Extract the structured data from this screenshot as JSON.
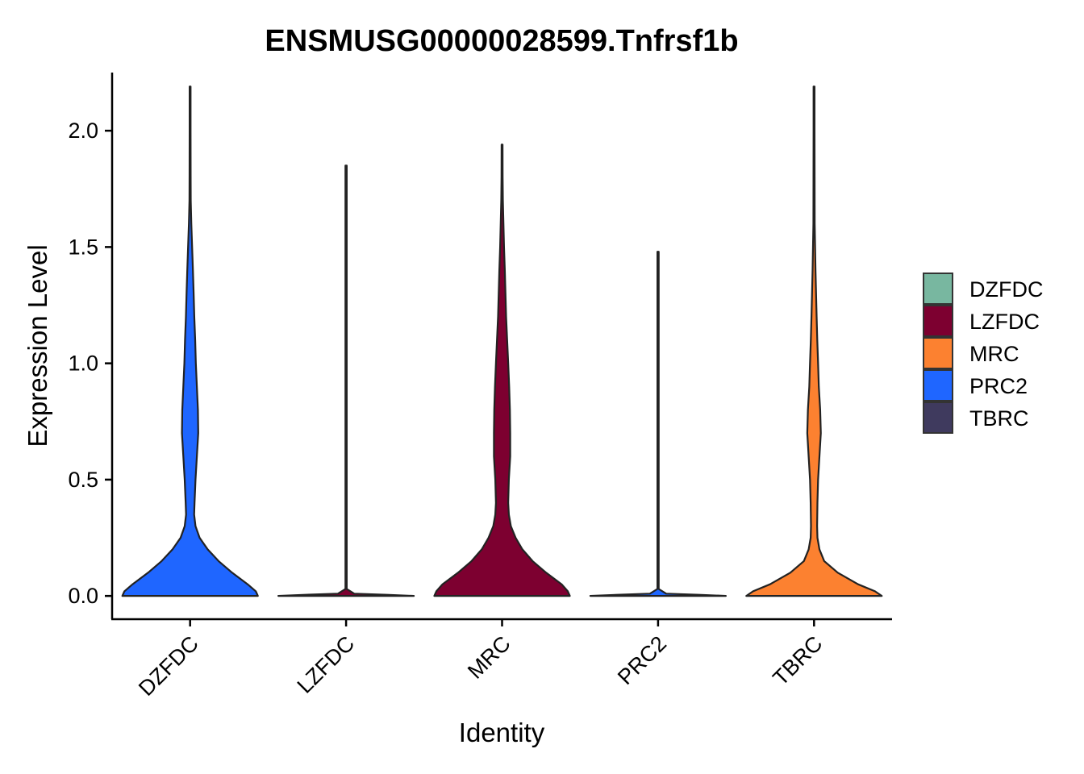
{
  "chart_data": {
    "type": "violin",
    "title": "ENSMUSG00000028599.Tnfrsf1b",
    "xlabel": "Identity",
    "ylabel": "Expression Level",
    "ylim": [
      -0.1,
      2.25
    ],
    "yticks": [
      0.0,
      0.5,
      1.0,
      1.5,
      2.0
    ],
    "ytick_labels": [
      "0.0",
      "0.5",
      "1.0",
      "1.5",
      "2.0"
    ],
    "categories": [
      "DZFDC",
      "LZFDC",
      "MRC",
      "PRC2",
      "TBRC"
    ],
    "grid": false,
    "legend_position": "right",
    "legend": [
      {
        "label": "DZFDC",
        "color": "#78B7A0"
      },
      {
        "label": "LZFDC",
        "color": "#7D0030"
      },
      {
        "label": "MRC",
        "color": "#FC8130"
      },
      {
        "label": "PRC2",
        "color": "#1F66FF"
      },
      {
        "label": "TBRC",
        "color": "#3F3A5E"
      }
    ],
    "series": [
      {
        "category": "DZFDC",
        "fill": "#1F66FF",
        "max": 2.19,
        "density": [
          [
            0.0,
            1.0
          ],
          [
            0.02,
            0.97
          ],
          [
            0.05,
            0.85
          ],
          [
            0.1,
            0.62
          ],
          [
            0.15,
            0.42
          ],
          [
            0.2,
            0.26
          ],
          [
            0.25,
            0.14
          ],
          [
            0.3,
            0.08
          ],
          [
            0.35,
            0.06
          ],
          [
            0.4,
            0.065
          ],
          [
            0.5,
            0.08
          ],
          [
            0.6,
            0.1
          ],
          [
            0.7,
            0.12
          ],
          [
            0.8,
            0.115
          ],
          [
            0.9,
            0.1
          ],
          [
            1.0,
            0.085
          ],
          [
            1.1,
            0.075
          ],
          [
            1.2,
            0.062
          ],
          [
            1.3,
            0.052
          ],
          [
            1.4,
            0.042
          ],
          [
            1.5,
            0.03
          ],
          [
            1.6,
            0.018
          ],
          [
            1.7,
            0.01
          ],
          [
            1.8,
            0.008
          ],
          [
            2.0,
            0.006
          ],
          [
            2.19,
            0.003
          ]
        ]
      },
      {
        "category": "LZFDC",
        "fill": "#7D0030",
        "max": 1.85,
        "density": [
          [
            0.0,
            1.0
          ],
          [
            0.005,
            0.6
          ],
          [
            0.01,
            0.12
          ],
          [
            0.03,
            0.01
          ],
          [
            0.1,
            0.01
          ],
          [
            1.85,
            0.01
          ]
        ]
      },
      {
        "category": "MRC",
        "fill": "#7D0030",
        "max": 1.94,
        "density": [
          [
            0.0,
            1.0
          ],
          [
            0.02,
            0.97
          ],
          [
            0.05,
            0.88
          ],
          [
            0.1,
            0.65
          ],
          [
            0.15,
            0.45
          ],
          [
            0.2,
            0.3
          ],
          [
            0.25,
            0.2
          ],
          [
            0.3,
            0.13
          ],
          [
            0.35,
            0.1
          ],
          [
            0.4,
            0.09
          ],
          [
            0.5,
            0.1
          ],
          [
            0.6,
            0.12
          ],
          [
            0.7,
            0.12
          ],
          [
            0.8,
            0.115
          ],
          [
            0.9,
            0.105
          ],
          [
            1.0,
            0.09
          ],
          [
            1.1,
            0.075
          ],
          [
            1.2,
            0.06
          ],
          [
            1.3,
            0.05
          ],
          [
            1.4,
            0.04
          ],
          [
            1.5,
            0.028
          ],
          [
            1.6,
            0.02
          ],
          [
            1.7,
            0.012
          ],
          [
            1.8,
            0.008
          ],
          [
            1.94,
            0.004
          ]
        ]
      },
      {
        "category": "PRC2",
        "fill": "#1F66FF",
        "max": 1.48,
        "density": [
          [
            0.0,
            1.0
          ],
          [
            0.005,
            0.6
          ],
          [
            0.01,
            0.12
          ],
          [
            0.03,
            0.01
          ],
          [
            0.1,
            0.01
          ],
          [
            1.48,
            0.01
          ]
        ]
      },
      {
        "category": "TBRC",
        "fill": "#FC8130",
        "max": 2.19,
        "density": [
          [
            0.0,
            1.0
          ],
          [
            0.02,
            0.9
          ],
          [
            0.05,
            0.65
          ],
          [
            0.1,
            0.35
          ],
          [
            0.15,
            0.15
          ],
          [
            0.2,
            0.08
          ],
          [
            0.25,
            0.05
          ],
          [
            0.3,
            0.045
          ],
          [
            0.4,
            0.05
          ],
          [
            0.5,
            0.06
          ],
          [
            0.6,
            0.08
          ],
          [
            0.7,
            0.1
          ],
          [
            0.8,
            0.09
          ],
          [
            0.9,
            0.07
          ],
          [
            1.0,
            0.06
          ],
          [
            1.1,
            0.048
          ],
          [
            1.2,
            0.038
          ],
          [
            1.3,
            0.03
          ],
          [
            1.4,
            0.022
          ],
          [
            1.5,
            0.015
          ],
          [
            1.6,
            0.01
          ],
          [
            1.8,
            0.008
          ],
          [
            2.0,
            0.006
          ],
          [
            2.19,
            0.003
          ]
        ]
      }
    ]
  }
}
